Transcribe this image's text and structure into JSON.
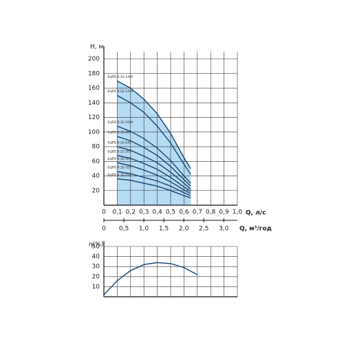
{
  "chart_data": [
    {
      "type": "line",
      "ylabel": "H, м",
      "xlabel": "Q, л/с",
      "x2label": "Q, м³/год",
      "x": [
        0.1,
        0.2,
        0.3,
        0.4,
        0.5,
        0.6,
        0.65
      ],
      "series": [
        {
          "name": "БЦПЕ 0,32-140У",
          "color": "#1f4e79",
          "values": [
            170,
            160,
            145,
            125,
            98,
            65,
            50
          ]
        },
        {
          "name": "БЦПЕ 0,32-120У",
          "color": "#1f4e79",
          "values": [
            150,
            140,
            127,
            108,
            85,
            56,
            42
          ]
        },
        {
          "name": "БЦПЕ 0,32-100У",
          "color": "#1f4e79",
          "values": [
            108,
            101,
            91,
            78,
            61,
            40,
            30
          ]
        },
        {
          "name": "БЦПЕ 0,32-80У",
          "color": "#1f4e79",
          "values": [
            94,
            88,
            79,
            68,
            53,
            35,
            26
          ]
        },
        {
          "name": "БЦПЕ 0,32-63У",
          "color": "#1f4e79",
          "values": [
            80,
            75,
            67,
            58,
            45,
            30,
            22
          ]
        },
        {
          "name": "БЦПЕ 0,32-50У",
          "color": "#1f4e79",
          "values": [
            68,
            64,
            57,
            49,
            38,
            25,
            19
          ]
        },
        {
          "name": "БЦПЕ 0,32-40У",
          "color": "#1f4e79",
          "values": [
            58,
            54,
            48,
            41,
            32,
            21,
            16
          ]
        },
        {
          "name": "БЦПЕ 0,32-32У",
          "color": "#1f4e79",
          "values": [
            46,
            43,
            38,
            33,
            26,
            17,
            13
          ]
        },
        {
          "name": "БЦПЕ 0,32-25У",
          "color": "#1f4e79",
          "values": [
            36,
            34,
            30,
            26,
            20,
            13,
            10
          ]
        }
      ],
      "area_color": "#a9d5f2",
      "xlim": [
        0,
        1.0
      ],
      "xticks": [
        0,
        {
          "value": 0.1,
          "label": "0,1"
        },
        {
          "value": 0.2,
          "label": "0,2"
        },
        {
          "value": 0.3,
          "label": "0,3"
        },
        {
          "value": 0.4,
          "label": "0,4"
        },
        {
          "value": 0.5,
          "label": "0,5"
        },
        {
          "value": 0.6,
          "label": "0,6"
        },
        {
          "value": 0.7,
          "label": "0,7"
        },
        {
          "value": 0.8,
          "label": "0,8"
        },
        {
          "value": 0.9,
          "label": "0,9"
        },
        {
          "value": 1.0,
          "label": "1,0"
        }
      ],
      "x2lim": [
        0,
        3.34
      ],
      "x2ticks": [
        0,
        {
          "value": 0.5,
          "label": "0,5"
        },
        {
          "value": 1.0,
          "label": "1,0"
        },
        {
          "value": 1.5,
          "label": "1,5"
        },
        {
          "value": 2.0,
          "label": "2,0"
        },
        {
          "value": 2.5,
          "label": "2,5"
        },
        {
          "value": 3.0,
          "label": "3,0"
        }
      ],
      "ylim": [
        0,
        210
      ],
      "yticks": [
        20,
        40,
        60,
        80,
        100,
        120,
        140,
        160,
        180,
        200
      ],
      "grid": true
    },
    {
      "type": "line",
      "ylabel": "η(%)",
      "x": [
        0,
        0.1,
        0.2,
        0.3,
        0.4,
        0.5,
        0.6,
        0.7
      ],
      "series": [
        {
          "color": "#1f4e79",
          "values": [
            2,
            16,
            26,
            32,
            34,
            33,
            29,
            22
          ]
        }
      ],
      "xlim": [
        0,
        1.0
      ],
      "xticks": [
        0,
        0.1,
        0.2,
        0.3,
        0.4,
        0.5,
        0.6,
        0.7,
        0.8,
        0.9,
        1.0
      ],
      "ylim": [
        0,
        50
      ],
      "yticks": [
        10,
        20,
        30,
        40,
        50
      ],
      "grid": true
    }
  ]
}
